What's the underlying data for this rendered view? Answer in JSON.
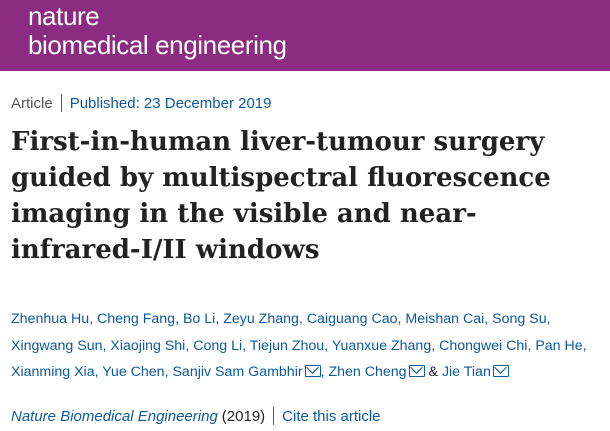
{
  "brand": {
    "line1": "nature",
    "line2": "biomedical engineering",
    "color": "#8b2b82"
  },
  "meta": {
    "type": "Article",
    "published": "Published: 23 December 2019"
  },
  "title": "First-in-human liver-tumour surgery guided by multispectral fluorescence imaging in the visible and near-infrared-I/II windows",
  "authors": [
    "Zhenhua Hu",
    "Cheng Fang",
    "Bo Li",
    "Zeyu Zhang",
    "Caiguang Cao",
    "Meishan Cai",
    "Song Su",
    "Xingwang Sun",
    "Xiaojing Shi",
    "Cong Li",
    "Tiejun Zhou",
    "Yuanxue Zhang",
    "Chongwei Chi",
    "Pan He",
    "Xianming Xia",
    "Yue Chen",
    "Sanjiv Sam Gambhir",
    "Zhen Cheng",
    "Jie Tian"
  ],
  "ampersand": "&",
  "citation": {
    "journal": "Nature Biomedical Engineering",
    "year": "(2019)",
    "cite_label": "Cite this article"
  },
  "link_color": "#0c5a9e"
}
